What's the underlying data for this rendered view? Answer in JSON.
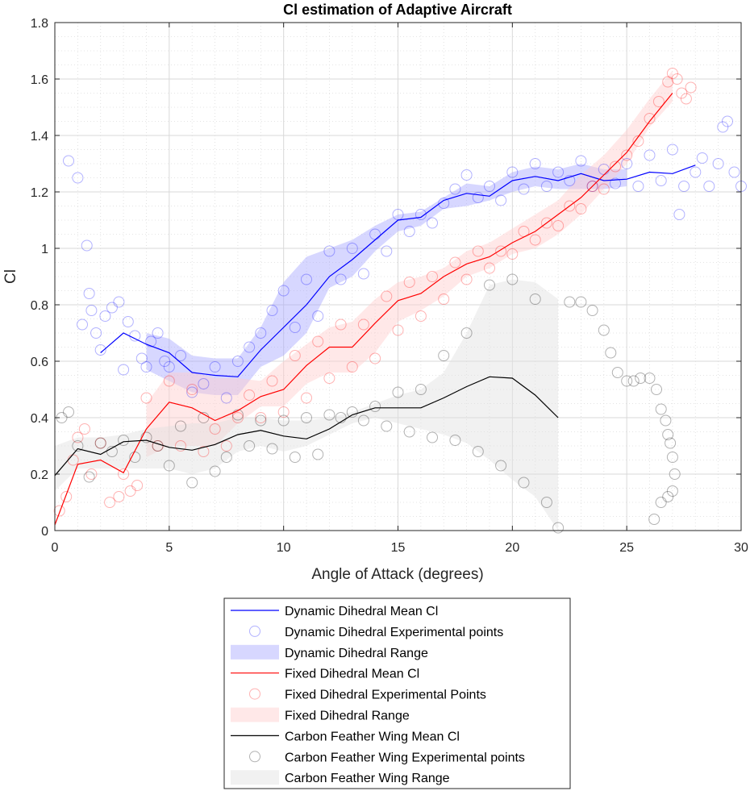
{
  "chart_data": {
    "type": "line",
    "title": "Cl estimation of Adaptive Aircraft",
    "xlabel": "Angle of Attack (degrees)",
    "ylabel": "Cl",
    "xlim": [
      0,
      30
    ],
    "ylim": [
      0,
      1.8
    ],
    "xticks": [
      0,
      5,
      10,
      15,
      20,
      25,
      30
    ],
    "yticks": [
      0,
      0.2,
      0.4,
      0.6,
      0.8,
      1,
      1.2,
      1.4,
      1.6,
      1.8
    ],
    "xtick_labels": [
      "0",
      "5",
      "10",
      "15",
      "20",
      "25",
      "30"
    ],
    "ytick_labels": [
      "0",
      "0.2",
      "0.4",
      "0.6",
      "0.8",
      "1",
      "1.2",
      "1.4",
      "1.6",
      "1.8"
    ],
    "grid": true,
    "minor_grid": true,
    "legend_position": "bottom-center, outside plot",
    "series": [
      {
        "name": "Dynamic Dihedral Mean Cl",
        "kind": "line",
        "color": "#0000ff",
        "x": [
          2,
          3,
          4,
          5,
          6,
          7,
          8,
          9,
          10,
          11,
          12,
          13,
          14,
          15,
          16,
          17,
          18,
          19,
          20,
          21,
          22,
          23,
          24,
          25,
          26,
          27,
          28
        ],
        "y": [
          0.63,
          0.7,
          0.66,
          0.63,
          0.56,
          0.55,
          0.545,
          0.64,
          0.72,
          0.8,
          0.9,
          0.96,
          1.03,
          1.1,
          1.11,
          1.17,
          1.195,
          1.185,
          1.24,
          1.255,
          1.24,
          1.265,
          1.24,
          1.245,
          1.27,
          1.265,
          1.295
        ]
      },
      {
        "name": "Dynamic Dihedral Experimental points",
        "kind": "scatter",
        "color": "#0000ff",
        "x": [
          0.6,
          1.0,
          1.2,
          1.4,
          1.5,
          1.6,
          1.8,
          2.0,
          2.2,
          2.5,
          2.8,
          3.0,
          3.2,
          3.5,
          3.8,
          4.0,
          4.2,
          4.5,
          4.8,
          5.0,
          5.5,
          6.0,
          6.5,
          7.0,
          7.5,
          8.0,
          8.5,
          9.0,
          9.5,
          10.0,
          10.5,
          11.0,
          11.5,
          12.0,
          12.5,
          13.0,
          13.5,
          14.0,
          14.5,
          15.0,
          15.5,
          16.0,
          16.5,
          17.0,
          17.5,
          18.0,
          18.5,
          19.0,
          19.5,
          20.0,
          20.5,
          21.0,
          21.5,
          22.0,
          22.5,
          23.0,
          23.5,
          24.0,
          24.5,
          25.0,
          25.5,
          26.0,
          26.5,
          27.0,
          27.3,
          27.5,
          28.0,
          28.3,
          28.6,
          29.0,
          29.2,
          29.4,
          29.7,
          30.0
        ],
        "y": [
          1.31,
          1.25,
          0.73,
          1.01,
          0.84,
          0.78,
          0.7,
          0.64,
          0.76,
          0.79,
          0.81,
          0.57,
          0.74,
          0.69,
          0.61,
          0.58,
          0.67,
          0.7,
          0.6,
          0.58,
          0.62,
          0.49,
          0.52,
          0.58,
          0.47,
          0.6,
          0.65,
          0.7,
          0.78,
          0.85,
          0.72,
          0.89,
          0.76,
          0.99,
          0.89,
          1.0,
          0.91,
          1.05,
          0.99,
          1.12,
          1.06,
          1.12,
          1.09,
          1.16,
          1.21,
          1.26,
          1.18,
          1.22,
          1.17,
          1.27,
          1.21,
          1.3,
          1.22,
          1.27,
          1.24,
          1.31,
          1.22,
          1.28,
          1.23,
          1.3,
          1.22,
          1.33,
          1.24,
          1.35,
          1.12,
          1.22,
          1.27,
          1.32,
          1.22,
          1.3,
          1.43,
          1.45,
          1.27,
          1.22
        ]
      },
      {
        "name": "Dynamic Dihedral Range",
        "kind": "band",
        "color": "#a6a6ff",
        "x": [
          4,
          5,
          6,
          7,
          8,
          9,
          10,
          11,
          12,
          13,
          14,
          15,
          16,
          17,
          18,
          19,
          20,
          21,
          22,
          23,
          24,
          25
        ],
        "lower": [
          0.57,
          0.53,
          0.49,
          0.48,
          0.48,
          0.58,
          0.62,
          0.7,
          0.86,
          0.9,
          0.99,
          1.06,
          1.08,
          1.14,
          1.15,
          1.17,
          1.2,
          1.22,
          1.21,
          1.21,
          1.21,
          1.22
        ],
        "upper": [
          0.7,
          0.68,
          0.62,
          0.61,
          0.61,
          0.72,
          0.88,
          0.97,
          1.0,
          1.03,
          1.08,
          1.12,
          1.13,
          1.18,
          1.23,
          1.22,
          1.27,
          1.29,
          1.28,
          1.3,
          1.28,
          1.28
        ]
      },
      {
        "name": "Fixed Dihedral Mean Cl",
        "kind": "line",
        "color": "#ff0000",
        "x": [
          0,
          1,
          2,
          3,
          4,
          5,
          6,
          7,
          8,
          9,
          10,
          11,
          12,
          13,
          14,
          15,
          16,
          17,
          18,
          19,
          20,
          21,
          22,
          23,
          24,
          25,
          26,
          27
        ],
        "y": [
          0.02,
          0.235,
          0.25,
          0.205,
          0.36,
          0.455,
          0.435,
          0.39,
          0.425,
          0.475,
          0.5,
          0.585,
          0.65,
          0.65,
          0.735,
          0.815,
          0.84,
          0.9,
          0.945,
          0.97,
          1.02,
          1.06,
          1.12,
          1.18,
          1.26,
          1.34,
          1.45,
          1.55
        ]
      },
      {
        "name": "Fixed Dihedral Experimental Points",
        "kind": "scatter",
        "color": "#ff0000",
        "x": [
          0.2,
          0.5,
          0.8,
          1.0,
          1.3,
          1.6,
          2.0,
          2.4,
          2.8,
          3.0,
          3.3,
          3.6,
          4.0,
          4.5,
          5.0,
          5.5,
          6.0,
          6.5,
          7.0,
          7.5,
          8.0,
          8.5,
          9.0,
          9.5,
          10.0,
          10.5,
          11.0,
          11.5,
          12.0,
          12.5,
          13.0,
          13.5,
          14.0,
          14.5,
          15.0,
          15.5,
          16.0,
          16.5,
          17.0,
          17.5,
          18.0,
          18.5,
          19.0,
          19.5,
          20.0,
          20.5,
          21.0,
          21.5,
          22.0,
          22.5,
          23.0,
          23.5,
          24.0,
          24.5,
          25.0,
          25.5,
          26.0,
          26.4,
          26.8,
          27.0,
          27.2,
          27.4,
          27.6,
          27.8
        ],
        "y": [
          0.07,
          0.12,
          0.25,
          0.33,
          0.36,
          0.2,
          0.31,
          0.1,
          0.12,
          0.2,
          0.14,
          0.16,
          0.47,
          0.3,
          0.53,
          0.3,
          0.5,
          0.28,
          0.36,
          0.3,
          0.4,
          0.48,
          0.4,
          0.53,
          0.42,
          0.62,
          0.47,
          0.67,
          0.54,
          0.73,
          0.58,
          0.73,
          0.61,
          0.83,
          0.71,
          0.88,
          0.76,
          0.9,
          0.82,
          0.95,
          0.89,
          0.99,
          0.93,
          0.99,
          0.98,
          1.06,
          1.03,
          1.09,
          1.08,
          1.15,
          1.14,
          1.22,
          1.21,
          1.29,
          1.33,
          1.38,
          1.46,
          1.52,
          1.59,
          1.62,
          1.6,
          1.55,
          1.53,
          1.57
        ]
      },
      {
        "name": "Fixed Dihedral Range",
        "kind": "band",
        "color": "#ffcccc",
        "x": [
          4,
          5,
          6,
          7,
          8,
          9,
          10,
          11,
          12,
          13,
          14,
          15,
          16,
          17,
          18,
          19,
          20,
          21,
          22,
          23,
          24,
          25,
          26,
          27
        ],
        "lower": [
          0.26,
          0.3,
          0.3,
          0.3,
          0.38,
          0.44,
          0.44,
          0.52,
          0.56,
          0.56,
          0.63,
          0.74,
          0.78,
          0.83,
          0.9,
          0.93,
          0.98,
          1.0,
          1.05,
          1.12,
          1.21,
          1.3,
          1.43,
          1.52
        ],
        "upper": [
          0.45,
          0.56,
          0.56,
          0.54,
          0.54,
          0.53,
          0.6,
          0.66,
          0.72,
          0.74,
          0.82,
          0.88,
          0.9,
          0.93,
          0.99,
          1.02,
          1.07,
          1.12,
          1.17,
          1.26,
          1.33,
          1.42,
          1.53,
          1.63
        ]
      },
      {
        "name": "Carbon Feather Wing Mean Cl",
        "kind": "line",
        "color": "#000000",
        "x": [
          0,
          1,
          2,
          3,
          4,
          5,
          6,
          7,
          8,
          9,
          10,
          11,
          12,
          13,
          14,
          15,
          16,
          17,
          18,
          19,
          20,
          21,
          22
        ],
        "y": [
          0.195,
          0.29,
          0.27,
          0.315,
          0.32,
          0.295,
          0.285,
          0.305,
          0.34,
          0.355,
          0.335,
          0.325,
          0.36,
          0.41,
          0.435,
          0.435,
          0.435,
          0.47,
          0.51,
          0.545,
          0.54,
          0.48,
          0.4
        ]
      },
      {
        "name": "Carbon Feather Wing Experimental points",
        "kind": "scatter",
        "color": "#000000",
        "x": [
          0.3,
          0.6,
          1.0,
          1.5,
          2.0,
          2.5,
          3.0,
          3.5,
          4.0,
          4.5,
          5.0,
          5.5,
          6.0,
          6.5,
          7.0,
          7.5,
          8.0,
          8.5,
          9.0,
          9.5,
          10.0,
          10.5,
          11.0,
          11.5,
          12.0,
          12.5,
          13.0,
          13.5,
          14.0,
          14.5,
          15.0,
          15.5,
          16.0,
          16.5,
          17.0,
          17.5,
          18.0,
          18.5,
          19.0,
          19.5,
          20.0,
          20.5,
          21.0,
          21.5,
          22.0,
          22.5,
          23.0,
          23.5,
          24.0,
          24.3,
          24.6,
          25.0,
          25.3,
          25.6,
          26.0,
          26.3,
          26.5,
          26.7,
          26.8,
          26.9,
          27.0,
          27.1,
          27.0,
          26.8,
          26.5,
          26.2
        ],
        "y": [
          0.4,
          0.42,
          0.3,
          0.19,
          0.31,
          0.28,
          0.32,
          0.26,
          0.33,
          0.3,
          0.23,
          0.37,
          0.17,
          0.4,
          0.21,
          0.26,
          0.41,
          0.3,
          0.39,
          0.29,
          0.39,
          0.26,
          0.4,
          0.27,
          0.41,
          0.4,
          0.42,
          0.39,
          0.44,
          0.37,
          0.49,
          0.35,
          0.5,
          0.33,
          0.62,
          0.32,
          0.7,
          0.28,
          0.87,
          0.23,
          0.89,
          0.17,
          0.82,
          0.1,
          0.01,
          0.81,
          0.81,
          0.78,
          0.71,
          0.63,
          0.56,
          0.53,
          0.53,
          0.54,
          0.54,
          0.5,
          0.43,
          0.39,
          0.34,
          0.31,
          0.26,
          0.2,
          0.14,
          0.12,
          0.1,
          0.04
        ]
      },
      {
        "name": "Carbon Feather Wing Range",
        "kind": "band",
        "color": "#e0e0e0",
        "x": [
          0,
          1,
          2,
          3,
          4,
          5,
          6,
          7,
          8,
          9,
          10,
          11,
          12,
          13,
          14,
          15,
          16,
          17,
          18,
          19,
          20,
          21,
          22
        ],
        "lower": [
          0.14,
          0.22,
          0.22,
          0.22,
          0.22,
          0.22,
          0.2,
          0.22,
          0.28,
          0.3,
          0.28,
          0.3,
          0.34,
          0.38,
          0.4,
          0.38,
          0.36,
          0.34,
          0.31,
          0.25,
          0.18,
          0.12,
          0.0
        ],
        "upper": [
          0.3,
          0.33,
          0.33,
          0.34,
          0.36,
          0.37,
          0.38,
          0.38,
          0.4,
          0.4,
          0.39,
          0.39,
          0.4,
          0.42,
          0.45,
          0.48,
          0.5,
          0.56,
          0.7,
          0.87,
          0.89,
          0.88,
          0.82
        ]
      }
    ]
  }
}
